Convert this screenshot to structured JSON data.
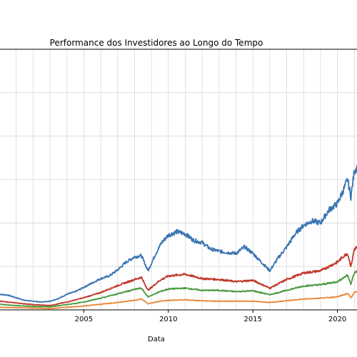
{
  "chart_data": {
    "type": "line",
    "title": "Performance dos Investidores ao Longo do Tempo",
    "xlabel": "Data",
    "ylabel": "",
    "grid": true,
    "xlim": [
      2000.0,
      2021.2
    ],
    "ylim": [
      0,
      6
    ],
    "x_ticks": [
      2005,
      2010,
      2015,
      2020
    ],
    "x_tick_labels": [
      "2005",
      "2010",
      "2015",
      "2020"
    ],
    "series": [
      {
        "color": "#3a74b3",
        "x": [
          2000.0,
          2000.5,
          2001.0,
          2001.5,
          2002.0,
          2002.5,
          2003.0,
          2003.5,
          2004.0,
          2004.5,
          2005.0,
          2005.5,
          2006.0,
          2006.5,
          2007.0,
          2007.5,
          2008.0,
          2008.4,
          2008.8,
          2009.2,
          2009.6,
          2010.0,
          2010.5,
          2011.0,
          2011.5,
          2012.0,
          2012.5,
          2013.0,
          2013.5,
          2014.0,
          2014.5,
          2015.0,
          2015.5,
          2016.0,
          2016.5,
          2017.0,
          2017.5,
          2018.0,
          2018.5,
          2019.0,
          2019.5,
          2020.0,
          2020.4,
          2020.6,
          2020.8,
          2021.0,
          2021.2
        ],
        "values": [
          0.36,
          0.34,
          0.28,
          0.22,
          0.2,
          0.18,
          0.2,
          0.26,
          0.36,
          0.42,
          0.52,
          0.62,
          0.72,
          0.78,
          0.92,
          1.1,
          1.22,
          1.25,
          0.9,
          1.25,
          1.55,
          1.72,
          1.8,
          1.75,
          1.6,
          1.55,
          1.4,
          1.35,
          1.32,
          1.3,
          1.45,
          1.3,
          1.1,
          0.9,
          1.2,
          1.45,
          1.75,
          1.95,
          2.05,
          2.0,
          2.3,
          2.45,
          2.8,
          3.0,
          2.6,
          3.2,
          3.3
        ]
      },
      {
        "color": "#c0392b",
        "x": [
          2000.0,
          2001.0,
          2002.0,
          2003.0,
          2004.0,
          2005.0,
          2006.0,
          2007.0,
          2008.0,
          2008.4,
          2008.8,
          2009.5,
          2010.0,
          2011.0,
          2012.0,
          2013.0,
          2014.0,
          2015.0,
          2016.0,
          2017.0,
          2018.0,
          2019.0,
          2020.0,
          2020.4,
          2020.6,
          2020.8,
          2021.0,
          2021.2
        ],
        "values": [
          0.2,
          0.16,
          0.12,
          0.1,
          0.18,
          0.28,
          0.4,
          0.56,
          0.7,
          0.75,
          0.45,
          0.68,
          0.78,
          0.82,
          0.72,
          0.7,
          0.65,
          0.68,
          0.5,
          0.7,
          0.85,
          0.9,
          1.1,
          1.25,
          1.3,
          1.0,
          1.4,
          1.45
        ]
      },
      {
        "color": "#4a9a3f",
        "x": [
          2000.0,
          2001.0,
          2002.0,
          2003.0,
          2004.0,
          2005.0,
          2006.0,
          2007.0,
          2008.0,
          2008.4,
          2008.8,
          2009.5,
          2010.0,
          2011.0,
          2012.0,
          2013.0,
          2014.0,
          2015.0,
          2016.0,
          2017.0,
          2018.0,
          2019.0,
          2020.0,
          2020.4,
          2020.6,
          2020.8,
          2021.0,
          2021.2
        ],
        "values": [
          0.13,
          0.1,
          0.08,
          0.07,
          0.12,
          0.18,
          0.27,
          0.37,
          0.47,
          0.5,
          0.3,
          0.42,
          0.48,
          0.5,
          0.45,
          0.45,
          0.42,
          0.44,
          0.35,
          0.45,
          0.55,
          0.58,
          0.65,
          0.75,
          0.8,
          0.6,
          0.85,
          0.9
        ]
      },
      {
        "color": "#e8893a",
        "x": [
          2000.0,
          2001.0,
          2002.0,
          2003.0,
          2004.0,
          2005.0,
          2006.0,
          2007.0,
          2008.0,
          2008.4,
          2008.8,
          2009.5,
          2010.0,
          2011.0,
          2012.0,
          2013.0,
          2014.0,
          2015.0,
          2016.0,
          2017.0,
          2018.0,
          2019.0,
          2020.0,
          2020.4,
          2020.6,
          2020.8,
          2021.0,
          2021.2
        ],
        "values": [
          0.06,
          0.05,
          0.04,
          0.03,
          0.06,
          0.09,
          0.13,
          0.17,
          0.22,
          0.25,
          0.14,
          0.2,
          0.22,
          0.23,
          0.21,
          0.2,
          0.2,
          0.2,
          0.17,
          0.21,
          0.25,
          0.27,
          0.3,
          0.35,
          0.38,
          0.28,
          0.4,
          0.42
        ]
      }
    ]
  }
}
